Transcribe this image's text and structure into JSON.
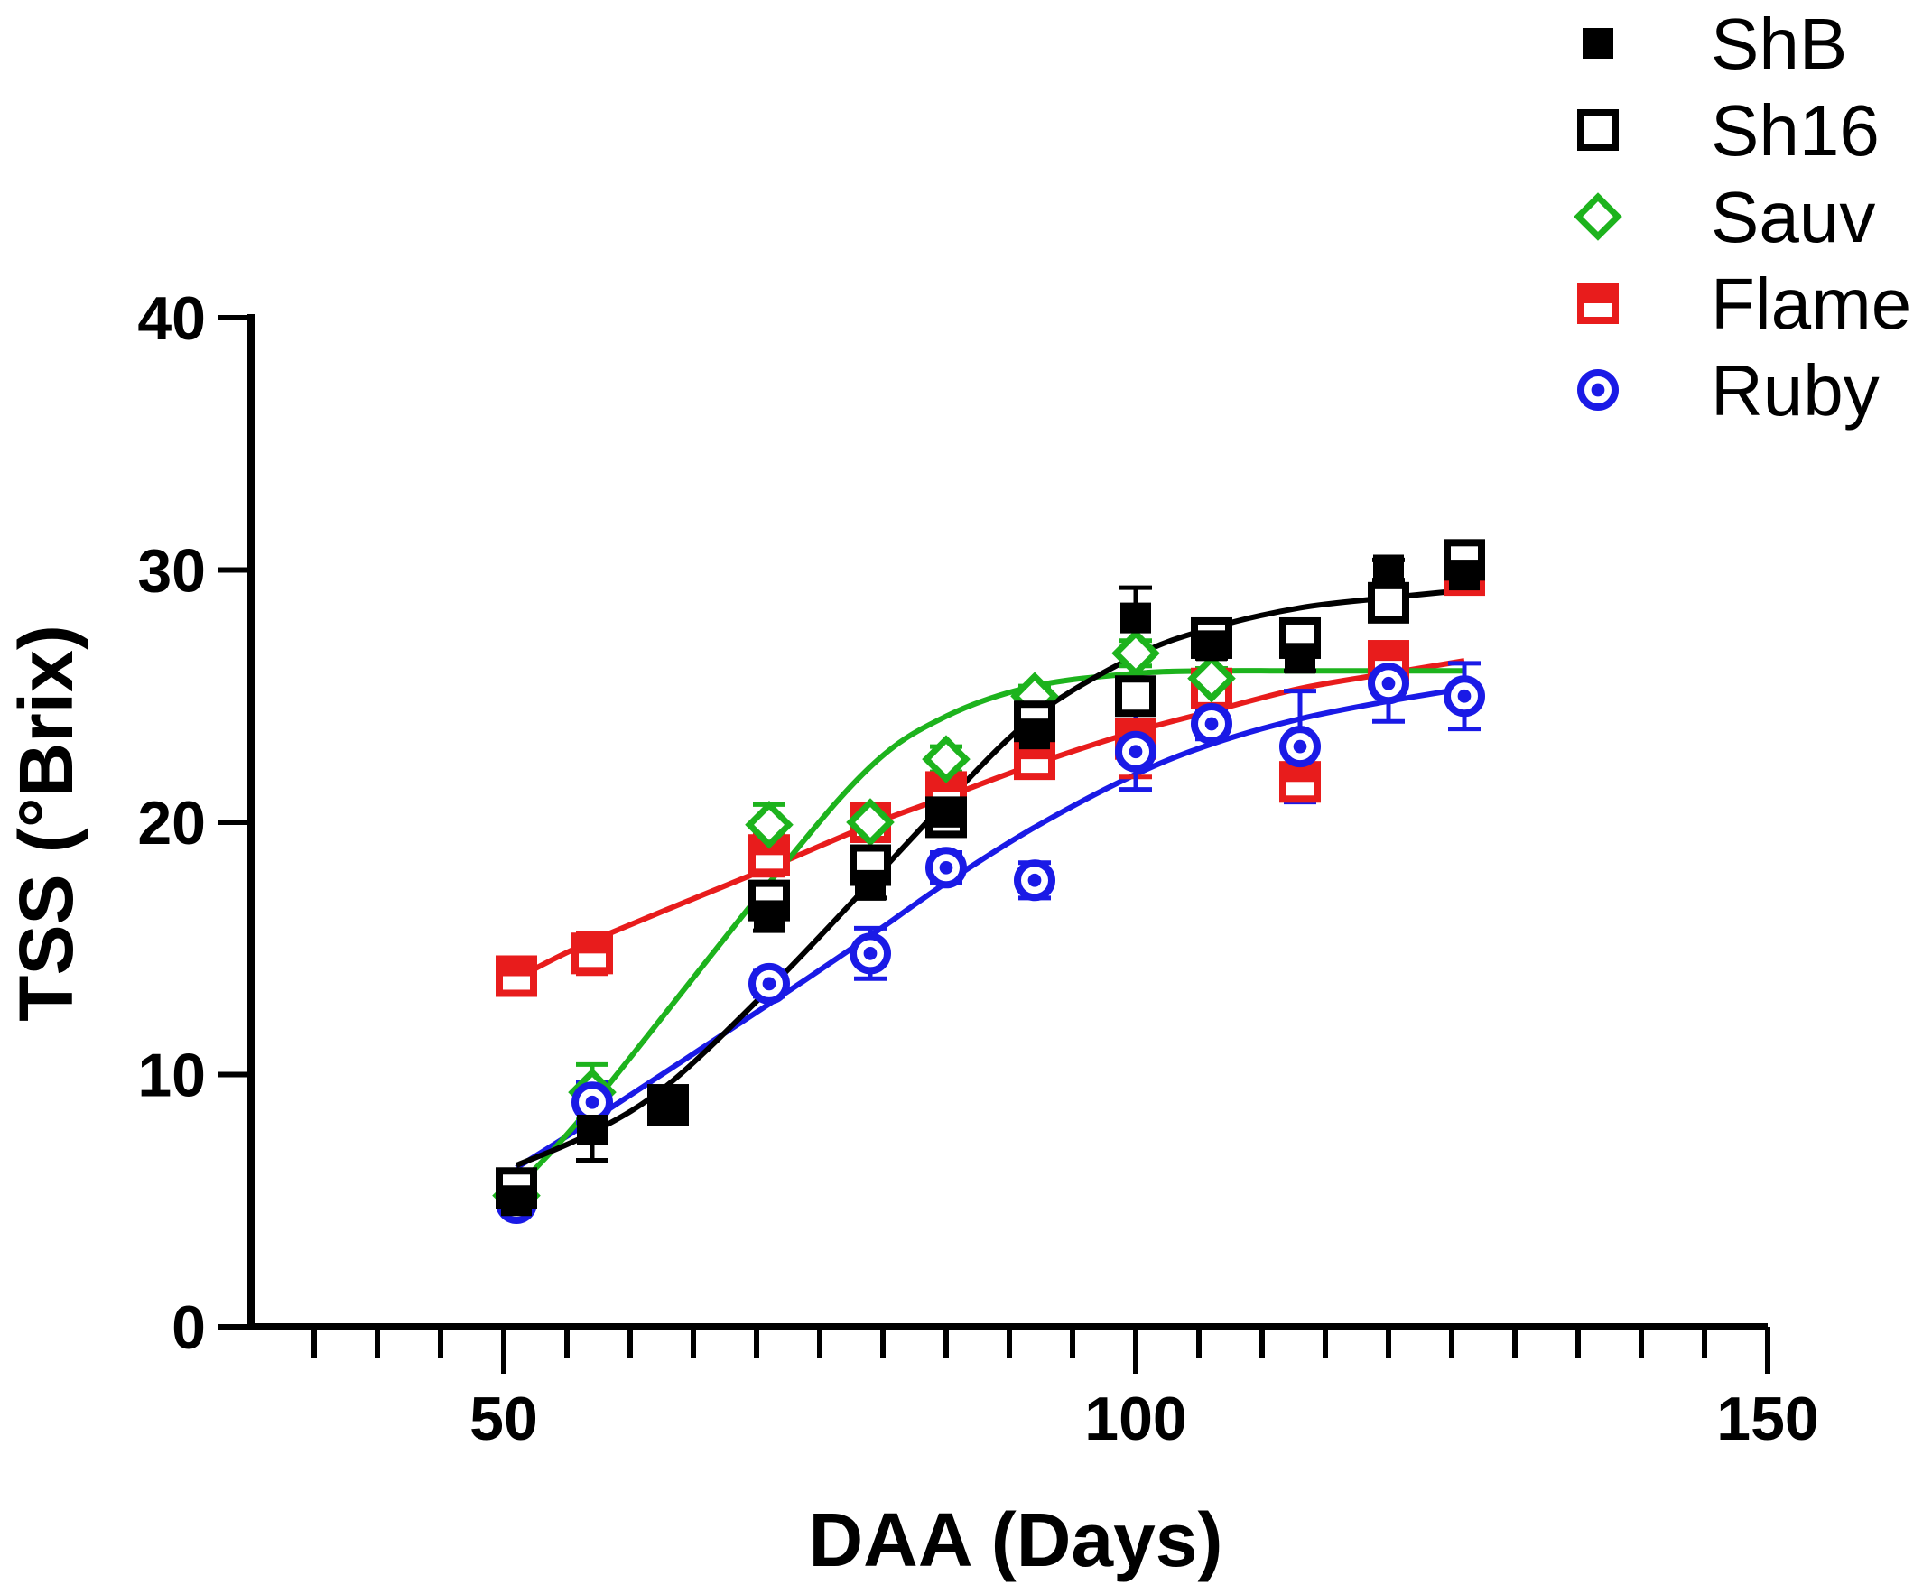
{
  "chart_data": {
    "type": "scatter",
    "title": "",
    "xlabel": "DAA (Days)",
    "ylabel": "TSS (°Brix)",
    "xlim": [
      30,
      150
    ],
    "ylim": [
      0,
      40
    ],
    "x_ticks": [
      50,
      100,
      150
    ],
    "x_minor_step": 5,
    "y_ticks": [
      0,
      10,
      20,
      30,
      40
    ],
    "legend_position": "top-right",
    "series": [
      {
        "name": "ShB",
        "color": "#000000",
        "marker": "square-filled",
        "x": [
          51,
          57,
          63,
          71,
          79,
          85,
          92,
          100,
          106,
          113,
          120,
          126
        ],
        "y": [
          5.0,
          7.8,
          8.8,
          16.3,
          17.5,
          20.4,
          23.5,
          28.1,
          27.0,
          26.5,
          30.0,
          29.8
        ],
        "err": [
          0.3,
          1.2,
          0.4,
          0.6,
          0.5,
          0.5,
          0.6,
          1.2,
          0.5,
          0.5,
          0.4,
          0.4
        ],
        "fit": [
          6.4,
          7.7,
          9.6,
          13.4,
          17.6,
          20.8,
          24.2,
          26.6,
          27.7,
          28.5,
          28.9,
          29.2
        ]
      },
      {
        "name": "Sh16",
        "color": "#000000",
        "marker": "square-open",
        "x": [
          51,
          63,
          71,
          79,
          85,
          92,
          100,
          106,
          113,
          120,
          126
        ],
        "y": [
          5.5,
          8.8,
          16.9,
          18.3,
          20.2,
          24.0,
          25.0,
          27.3,
          27.3,
          28.7,
          30.4
        ],
        "err": [
          0.3,
          0.6,
          0.6,
          0.6,
          0.5,
          0.5,
          0.6,
          0.4,
          0.4,
          0.4,
          0.4
        ]
      },
      {
        "name": "Sauv",
        "color": "#1db31d",
        "marker": "diamond-open",
        "x": [
          51,
          57,
          71,
          79,
          85,
          92,
          100,
          106
        ],
        "y": [
          5.2,
          9.3,
          19.9,
          20.0,
          22.5,
          25.0,
          26.7,
          25.7
        ],
        "err": [
          0.3,
          1.1,
          0.8,
          0.5,
          0.5,
          0.4,
          0.5,
          0.4
        ],
        "fit": [
          5.5,
          8.8,
          17.6,
          22.2,
          24.2,
          25.4,
          25.9,
          26.0,
          26.0,
          26.0,
          26.0,
          26.0
        ],
        "fit_x": [
          51,
          57,
          71,
          79,
          85,
          92,
          100,
          106,
          113,
          120,
          126,
          126
        ]
      },
      {
        "name": "Flame",
        "color": "#e81c1c",
        "marker": "square-half",
        "x": [
          51,
          57,
          71,
          79,
          85,
          92,
          100,
          106,
          113,
          120,
          126
        ],
        "y": [
          13.9,
          14.8,
          18.7,
          20.0,
          21.2,
          22.5,
          23.3,
          25.3,
          21.6,
          26.4,
          29.8
        ],
        "err": [
          0.6,
          0.8,
          0.8,
          0.6,
          0.6,
          0.5,
          1.5,
          0.8,
          0.6,
          0.6,
          0.5
        ],
        "fit": [
          13.8,
          15.3,
          18.2,
          19.9,
          21.0,
          22.3,
          23.6,
          24.4,
          25.3,
          25.9,
          26.4
        ]
      },
      {
        "name": "Ruby",
        "color": "#1a1ae6",
        "marker": "circle-dot",
        "x": [
          51,
          57,
          71,
          79,
          85,
          92,
          100,
          106,
          113,
          120,
          126
        ],
        "y": [
          4.9,
          8.9,
          13.6,
          14.8,
          18.2,
          17.7,
          22.8,
          23.9,
          23.0,
          25.5,
          25.0
        ],
        "err": [
          0.3,
          0.8,
          0.5,
          1.0,
          0.6,
          0.7,
          1.5,
          0.6,
          2.2,
          1.5,
          1.3
        ],
        "fit": [
          6.3,
          8.2,
          12.8,
          15.5,
          17.6,
          19.8,
          21.9,
          23.1,
          24.1,
          24.8,
          25.3
        ]
      }
    ]
  }
}
